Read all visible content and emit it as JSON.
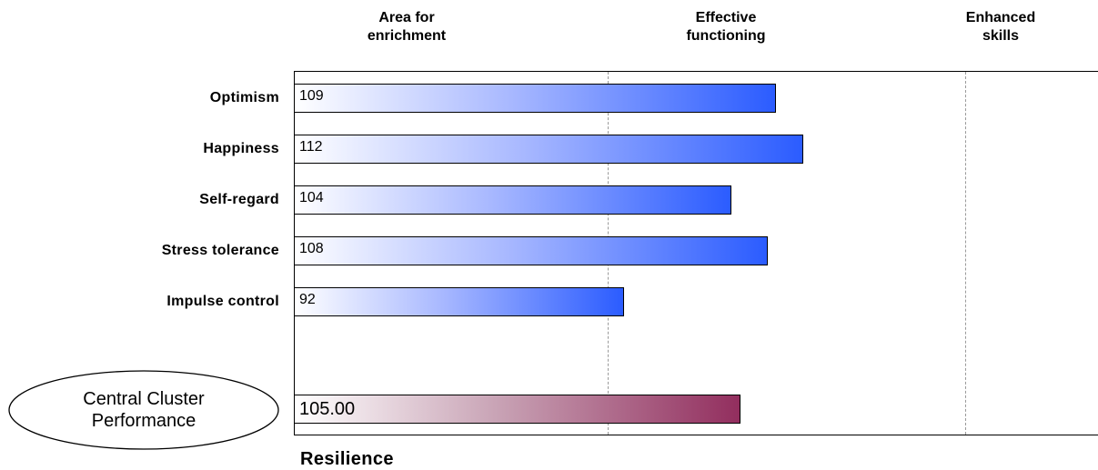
{
  "chart_data": {
    "type": "bar",
    "orientation": "horizontal",
    "zones": [
      {
        "line1": "Area for",
        "line2": "enrichment"
      },
      {
        "line1": "Effective",
        "line2": "functioning"
      },
      {
        "line1": "Enhanced",
        "line2": "skills"
      }
    ],
    "categories": [
      "Optimism",
      "Happiness",
      "Self-regard",
      "Stress tolerance",
      "Impulse control"
    ],
    "values": [
      109,
      112,
      104,
      108,
      92
    ],
    "value_labels": [
      "109",
      "112",
      "104",
      "108",
      "92"
    ],
    "summary": {
      "label_line1": "Central Cluster",
      "label_line2": "Performance",
      "value": 105.0,
      "value_label": "105.00"
    },
    "xlim": [
      55,
      145
    ],
    "zone_boundaries": [
      90,
      130
    ],
    "footer": "Resilience",
    "colors": {
      "bars": "#2b5cff",
      "summary": "#922e5e"
    }
  }
}
